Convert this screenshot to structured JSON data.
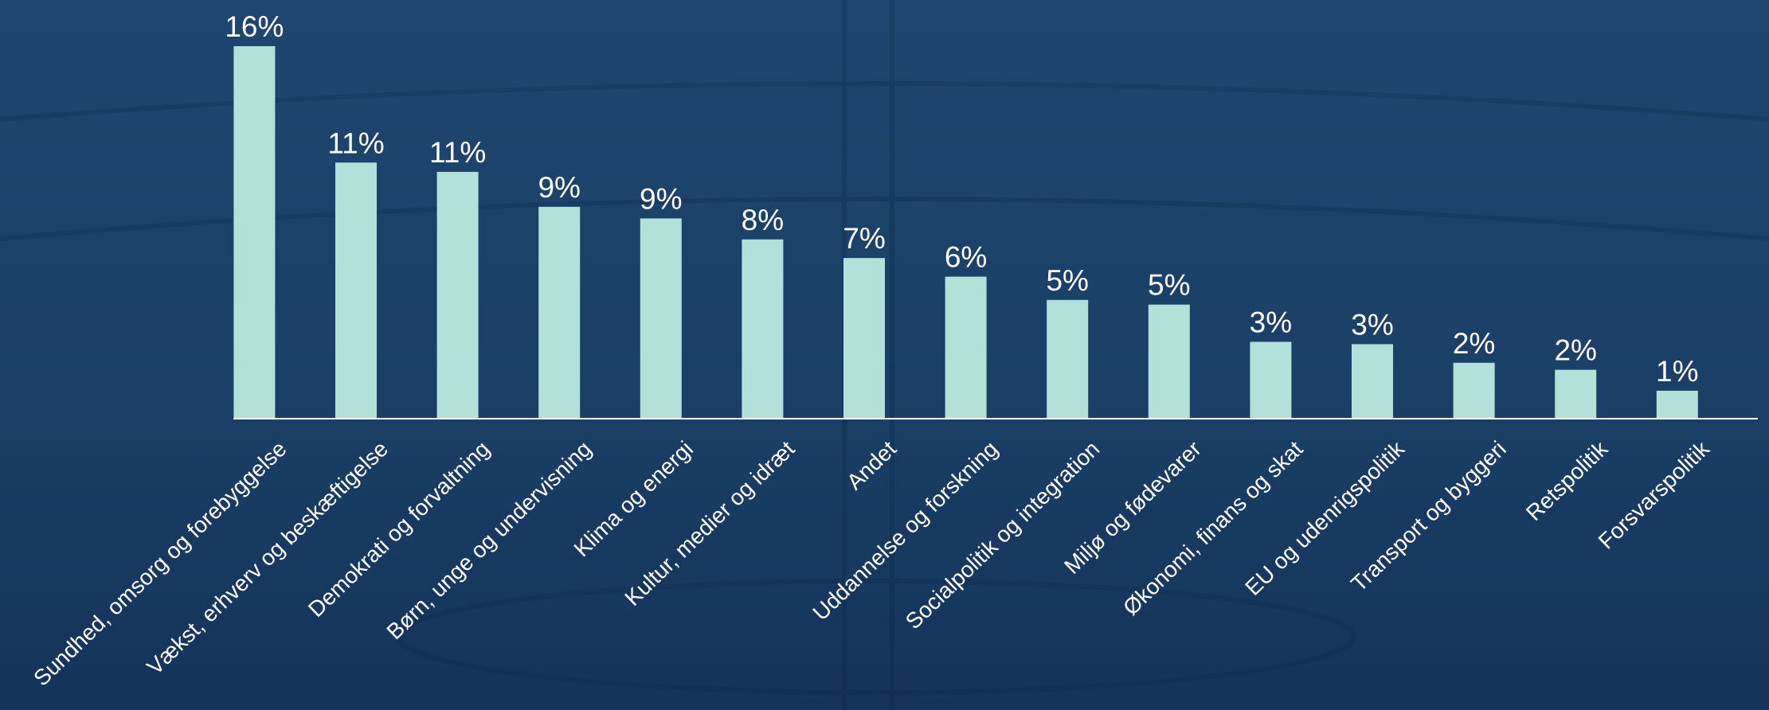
{
  "chart_data": {
    "type": "bar",
    "categories": [
      "Sundhed, omsorg og forebyggelse",
      "Vækst, erhverv og beskæftigelse",
      "Demokrati og forvaltning",
      "Børn, unge og undervisning",
      "Klima og energi",
      "Kultur, medier og idræt",
      "Andet",
      "Uddannelse og forskning",
      "Socialpolitik og integration",
      "Miljø og fødevarer",
      "Økonomi, finans og skat",
      "EU og udenrigspolitik",
      "Transport og byggeri",
      "Retspolitik",
      "Forsvarspolitik"
    ],
    "values": [
      16,
      11.0,
      10.6,
      9.1,
      8.6,
      7.7,
      6.9,
      6.1,
      5.1,
      4.9,
      3.3,
      3.2,
      2.4,
      2.1,
      1.2
    ],
    "value_labels": [
      "16%",
      "11%",
      "11%",
      "9%",
      "9%",
      "8%",
      "7%",
      "6%",
      "5%",
      "5%",
      "3%",
      "3%",
      "2%",
      "2%",
      "1%"
    ],
    "color": "#b3e0d8"
  }
}
